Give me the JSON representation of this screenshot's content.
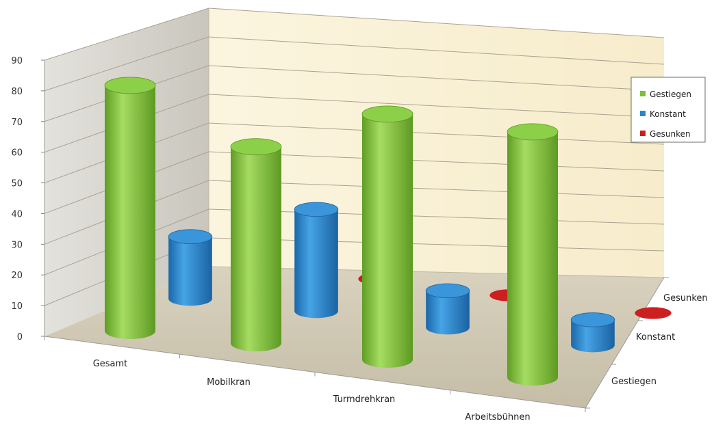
{
  "chart_data": {
    "type": "bar",
    "variant": "3d-cylinder",
    "title": "",
    "xlabel": "",
    "ylabel": "",
    "ylim": [
      0,
      90
    ],
    "yticks": [
      0,
      10,
      20,
      30,
      40,
      50,
      60,
      70,
      80,
      90
    ],
    "grid": true,
    "legend_position": "right",
    "categories": [
      "Gesamt",
      "Mobilkran",
      "Turmdrehkran",
      "Arbeitsbühnen"
    ],
    "depth_labels": [
      "Gestiegen",
      "Konstant",
      "Gesunken"
    ],
    "series": [
      {
        "name": "Gestiegen",
        "color": "#7bbf3a",
        "values": [
          80,
          64,
          80,
          80
        ]
      },
      {
        "name": "Konstant",
        "color": "#2b86cc",
        "values": [
          22,
          36,
          13,
          9
        ]
      },
      {
        "name": "Gesunken",
        "color": "#cc1f1f",
        "values": [
          0,
          0,
          0,
          0
        ]
      }
    ]
  }
}
